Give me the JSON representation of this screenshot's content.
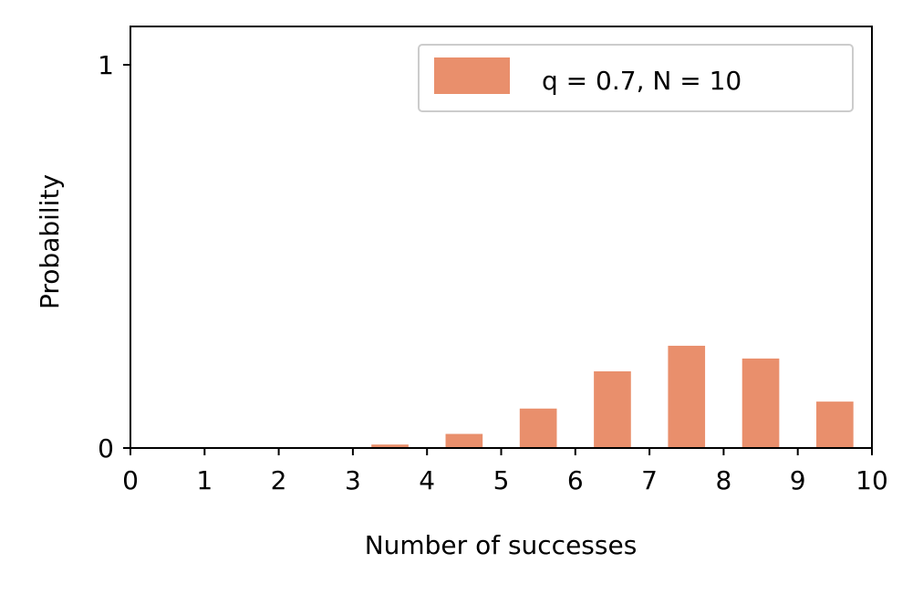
{
  "chart_data": {
    "type": "bar",
    "title": "",
    "xlabel": "Number of successes",
    "ylabel": "Probability",
    "xlim": [
      0,
      10
    ],
    "ylim": [
      0,
      1.1
    ],
    "x_ticks": [
      "0",
      "1",
      "2",
      "3",
      "4",
      "5",
      "6",
      "7",
      "8",
      "9",
      "10"
    ],
    "y_ticks": [
      "0",
      "1"
    ],
    "grid": false,
    "legend_position": "top-right",
    "bar_color": "#e98f6c",
    "series": [
      {
        "name": "q = 0.7, N = 10",
        "x": [
          0,
          1,
          2,
          3,
          4,
          5,
          6,
          7,
          8,
          9
        ],
        "values": [
          0.0,
          0.0001,
          0.0014,
          0.009,
          0.0368,
          0.1029,
          0.2001,
          0.2668,
          0.2335,
          0.1211
        ]
      }
    ]
  }
}
